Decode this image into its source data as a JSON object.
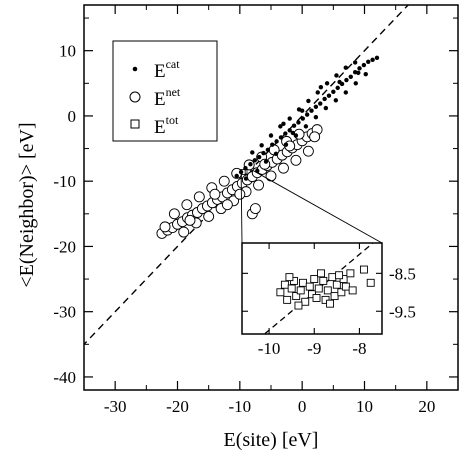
{
  "chart_data": {
    "type": "scatter",
    "xlabel": "E(site) [eV]",
    "ylabel": "<E(Neighbor)> [eV]",
    "xlim": [
      -35,
      25
    ],
    "ylim": [
      -42,
      17
    ],
    "xticks": [
      -30,
      -20,
      -10,
      0,
      10,
      20
    ],
    "yticks": [
      -40,
      -30,
      -20,
      -10,
      0,
      10
    ],
    "xtick_labels": [
      "-30",
      "-20",
      "-10",
      "0",
      "10",
      "20"
    ],
    "ytick_labels": [
      "-40",
      "-30",
      "-20",
      "-10",
      "0",
      "10"
    ],
    "reference_line": {
      "style": "dashed",
      "slope": 1,
      "intercept": 0
    },
    "legend": {
      "position": "top-left",
      "entries": [
        {
          "base": "E",
          "sup": "cat",
          "marker": "filled-circle"
        },
        {
          "base": "E",
          "sup": "net",
          "marker": "open-circle"
        },
        {
          "base": "E",
          "sup": "tot",
          "marker": "open-square"
        }
      ]
    },
    "series": [
      {
        "name": "Ecat",
        "marker": "filled-circle",
        "cluster": {
          "x_range": [
            -11,
            13
          ],
          "y_range": [
            -10,
            9
          ],
          "approx_relation": "y ≈ 0.83·x − 0.5"
        },
        "points": [
          [
            -10.5,
            -9.2
          ],
          [
            -9.8,
            -8.6
          ],
          [
            -9.1,
            -8.0
          ],
          [
            -8.3,
            -7.4
          ],
          [
            -7.6,
            -6.8
          ],
          [
            -6.9,
            -6.3
          ],
          [
            -6.2,
            -5.7
          ],
          [
            -5.5,
            -5.2
          ],
          [
            -4.8,
            -4.4
          ],
          [
            -4.1,
            -3.9
          ],
          [
            -3.4,
            -3.3
          ],
          [
            -2.7,
            -2.7
          ],
          [
            -2.0,
            -2.2
          ],
          [
            -1.3,
            -1.5
          ],
          [
            -0.6,
            -1.0
          ],
          [
            0.1,
            -0.4
          ],
          [
            0.8,
            0.2
          ],
          [
            1.5,
            0.8
          ],
          [
            2.2,
            1.4
          ],
          [
            2.9,
            1.9
          ],
          [
            3.6,
            2.6
          ],
          [
            4.3,
            3.1
          ],
          [
            5.0,
            3.7
          ],
          [
            5.7,
            4.3
          ],
          [
            6.4,
            4.9
          ],
          [
            7.1,
            5.5
          ],
          [
            7.8,
            6.0
          ],
          [
            8.5,
            6.7
          ],
          [
            9.2,
            7.3
          ],
          [
            9.9,
            7.8
          ],
          [
            10.6,
            8.3
          ],
          [
            11.3,
            8.6
          ],
          [
            -8.0,
            -5.6
          ],
          [
            -6.5,
            -4.5
          ],
          [
            -5.0,
            -3.0
          ],
          [
            -3.5,
            -1.6
          ],
          [
            -2.0,
            -0.4
          ],
          [
            -0.5,
            1.0
          ],
          [
            1.0,
            2.3
          ],
          [
            2.5,
            3.6
          ],
          [
            4.0,
            5.0
          ],
          [
            5.5,
            6.2
          ],
          [
            7.0,
            7.4
          ],
          [
            8.5,
            8.2
          ],
          [
            -7.2,
            -8.4
          ],
          [
            -5.8,
            -7.0
          ],
          [
            -4.2,
            -5.8
          ],
          [
            -2.6,
            -4.4
          ],
          [
            -1.0,
            -3.0
          ],
          [
            0.6,
            -1.6
          ],
          [
            2.2,
            -0.2
          ],
          [
            3.8,
            1.2
          ],
          [
            5.4,
            2.4
          ],
          [
            7.0,
            3.6
          ],
          [
            8.6,
            5.0
          ],
          [
            10.2,
            6.4
          ],
          [
            -9.0,
            -9.6
          ],
          [
            -3.0,
            -1.2
          ],
          [
            0.0,
            0.8
          ],
          [
            3.0,
            4.4
          ],
          [
            6.0,
            5.2
          ],
          [
            9.0,
            6.6
          ],
          [
            12.0,
            8.9
          ],
          [
            -1.5,
            -2.6
          ]
        ]
      },
      {
        "name": "Enet",
        "marker": "open-circle",
        "cluster": {
          "x_range": [
            -23,
            3
          ],
          "y_range": [
            -19,
            -2
          ],
          "approx_relation": "y ≈ 0.65·x − 4"
        },
        "points": [
          [
            -22.5,
            -18.0
          ],
          [
            -21.6,
            -17.5
          ],
          [
            -20.8,
            -17.1
          ],
          [
            -20.0,
            -16.6
          ],
          [
            -19.2,
            -16.2
          ],
          [
            -18.4,
            -15.6
          ],
          [
            -17.6,
            -15.2
          ],
          [
            -16.8,
            -14.8
          ],
          [
            -16.0,
            -14.2
          ],
          [
            -15.2,
            -13.8
          ],
          [
            -14.4,
            -13.3
          ],
          [
            -13.6,
            -12.8
          ],
          [
            -12.8,
            -12.4
          ],
          [
            -12.0,
            -11.8
          ],
          [
            -11.2,
            -11.3
          ],
          [
            -10.4,
            -10.8
          ],
          [
            -9.6,
            -10.3
          ],
          [
            -8.8,
            -9.8
          ],
          [
            -8.0,
            -9.3
          ],
          [
            -7.2,
            -8.7
          ],
          [
            -6.4,
            -8.2
          ],
          [
            -5.6,
            -7.6
          ],
          [
            -4.8,
            -7.1
          ],
          [
            -4.0,
            -6.6
          ],
          [
            -3.2,
            -6.0
          ],
          [
            -2.4,
            -5.5
          ],
          [
            -1.6,
            -4.9
          ],
          [
            -0.8,
            -4.4
          ],
          [
            0.0,
            -3.8
          ],
          [
            0.8,
            -3.2
          ],
          [
            1.6,
            -2.7
          ],
          [
            2.4,
            -2.1
          ],
          [
            -20.5,
            -15.0
          ],
          [
            -18.5,
            -13.6
          ],
          [
            -16.5,
            -12.4
          ],
          [
            -14.5,
            -11.0
          ],
          [
            -12.5,
            -10.0
          ],
          [
            -10.5,
            -8.8
          ],
          [
            -8.5,
            -7.5
          ],
          [
            -6.5,
            -6.3
          ],
          [
            -4.5,
            -5.2
          ],
          [
            -2.5,
            -3.9
          ],
          [
            -0.5,
            -2.8
          ],
          [
            -19.0,
            -17.8
          ],
          [
            -17.0,
            -16.4
          ],
          [
            -15.0,
            -15.4
          ],
          [
            -13.0,
            -14.2
          ],
          [
            -11.0,
            -13.0
          ],
          [
            -9.0,
            -11.6
          ],
          [
            -7.0,
            -10.6
          ],
          [
            -5.0,
            -9.2
          ],
          [
            -3.0,
            -8.0
          ],
          [
            -1.0,
            -6.8
          ],
          [
            1.0,
            -5.4
          ],
          [
            -8.0,
            -15.0
          ],
          [
            -14.0,
            -12.0
          ],
          [
            -10.0,
            -12.0
          ],
          [
            -6.0,
            -7.4
          ],
          [
            -2.0,
            -4.6
          ],
          [
            -12.0,
            -13.6
          ],
          [
            -18.0,
            -16.0
          ],
          [
            -22.0,
            -17.0
          ],
          [
            -7.5,
            -14.2
          ],
          [
            2.0,
            -3.2
          ]
        ]
      },
      {
        "name": "Etot",
        "marker": "open-square",
        "cluster": {
          "x_range": [
            -9.8,
            -7.7
          ],
          "y_range": [
            -9.4,
            -8.4
          ],
          "shown_in": "inset"
        },
        "points": [
          [
            -9.75,
            -9.0
          ],
          [
            -9.65,
            -8.8
          ],
          [
            -9.6,
            -9.2
          ],
          [
            -9.5,
            -8.9
          ],
          [
            -9.45,
            -8.7
          ],
          [
            -9.4,
            -9.1
          ],
          [
            -9.3,
            -8.95
          ],
          [
            -9.25,
            -8.75
          ],
          [
            -9.2,
            -9.25
          ],
          [
            -9.1,
            -8.85
          ],
          [
            -9.05,
            -9.05
          ],
          [
            -9.0,
            -8.65
          ],
          [
            -8.95,
            -9.15
          ],
          [
            -8.9,
            -8.9
          ],
          [
            -8.8,
            -8.7
          ],
          [
            -8.75,
            -9.2
          ],
          [
            -8.7,
            -8.95
          ],
          [
            -8.6,
            -8.6
          ],
          [
            -8.55,
            -9.1
          ],
          [
            -8.5,
            -8.8
          ],
          [
            -8.4,
            -9.0
          ],
          [
            -8.35,
            -8.65
          ],
          [
            -8.3,
            -8.85
          ],
          [
            -8.2,
            -8.5
          ],
          [
            -8.15,
            -8.95
          ],
          [
            -9.35,
            -9.35
          ],
          [
            -8.65,
            -9.3
          ],
          [
            -8.85,
            -8.5
          ],
          [
            -9.55,
            -8.6
          ],
          [
            -8.45,
            -8.55
          ],
          [
            -7.9,
            -8.4
          ],
          [
            -7.75,
            -8.75
          ]
        ]
      }
    ],
    "inset": {
      "xlim": [
        -10.6,
        -7.5
      ],
      "ylim": [
        -10.1,
        -7.7
      ],
      "xticks": [
        -10,
        -9,
        -8
      ],
      "yticks": [
        -9.5,
        -8.5
      ],
      "xtick_labels": [
        "-10",
        "-9",
        "-8"
      ],
      "ytick_labels": [
        "-9.5",
        "-8.5"
      ],
      "zoom_region": {
        "x": [
          -9.8,
          -8.0
        ],
        "y": [
          -9.5,
          -8.3
        ]
      }
    }
  }
}
